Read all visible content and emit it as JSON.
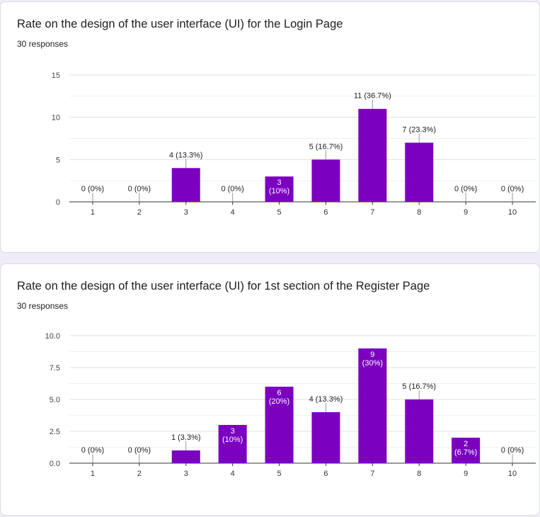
{
  "charts": [
    {
      "title": "Rate on the design of the user interface (UI) for the Login Page",
      "responses": "30 responses"
    },
    {
      "title": "Rate on the design of the user interface (UI) for 1st section of the Register Page",
      "responses": "30 responses"
    }
  ],
  "chart_data": [
    {
      "type": "bar",
      "title": "Rate on the design of the user interface (UI) for the Login Page",
      "categories": [
        "1",
        "2",
        "3",
        "4",
        "5",
        "6",
        "7",
        "8",
        "9",
        "10"
      ],
      "values": [
        0,
        0,
        4,
        0,
        3,
        5,
        11,
        7,
        0,
        0
      ],
      "data_labels": [
        "0 (0%)",
        "0 (0%)",
        "4 (13.3%)",
        "0 (0%)",
        "3\n(10%)",
        "5 (16.7%)",
        "11 (36.7%)",
        "7 (23.3%)",
        "0 (0%)",
        "0 (0%)"
      ],
      "inside_label": [
        false,
        false,
        false,
        false,
        true,
        false,
        false,
        false,
        false,
        false
      ],
      "yticks": [
        "0",
        "5",
        "10",
        "15"
      ],
      "ylim": [
        0,
        15
      ],
      "grid": true,
      "bar_color": "#7b00c0"
    },
    {
      "type": "bar",
      "title": "Rate on the design of the user interface (UI) for 1st section of the Register Page",
      "categories": [
        "1",
        "2",
        "3",
        "4",
        "5",
        "6",
        "7",
        "8",
        "9",
        "10"
      ],
      "values": [
        0,
        0,
        1,
        3,
        6,
        4,
        9,
        5,
        2,
        0
      ],
      "data_labels": [
        "0 (0%)",
        "0 (0%)",
        "1 (3.3%)",
        "3\n(10%)",
        "6\n(20%)",
        "4 (13.3%)",
        "9\n(30%)",
        "5 (16.7%)",
        "2\n(6.7%)",
        "0 (0%)"
      ],
      "inside_label": [
        false,
        false,
        false,
        true,
        true,
        false,
        true,
        false,
        true,
        false
      ],
      "yticks": [
        "0.0",
        "2.5",
        "5.0",
        "7.5",
        "10.0"
      ],
      "ylim": [
        0,
        10
      ],
      "grid": true,
      "bar_color": "#7b00c0"
    }
  ]
}
